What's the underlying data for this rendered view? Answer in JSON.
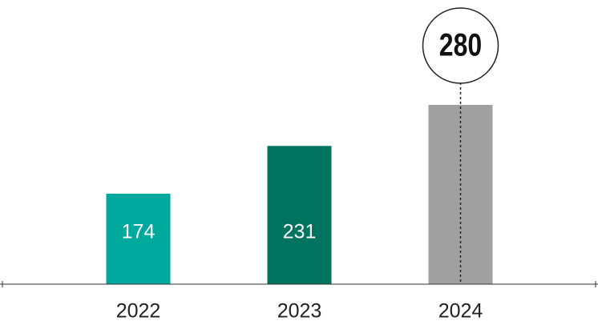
{
  "chart_data": {
    "type": "bar",
    "categories": [
      "2022",
      "2023",
      "2024"
    ],
    "values": [
      174,
      231,
      280
    ],
    "colors": [
      "#00a99d",
      "#00745f",
      "#a0a0a0"
    ],
    "ylim": [
      66,
      280
    ],
    "callout_index": 2
  }
}
